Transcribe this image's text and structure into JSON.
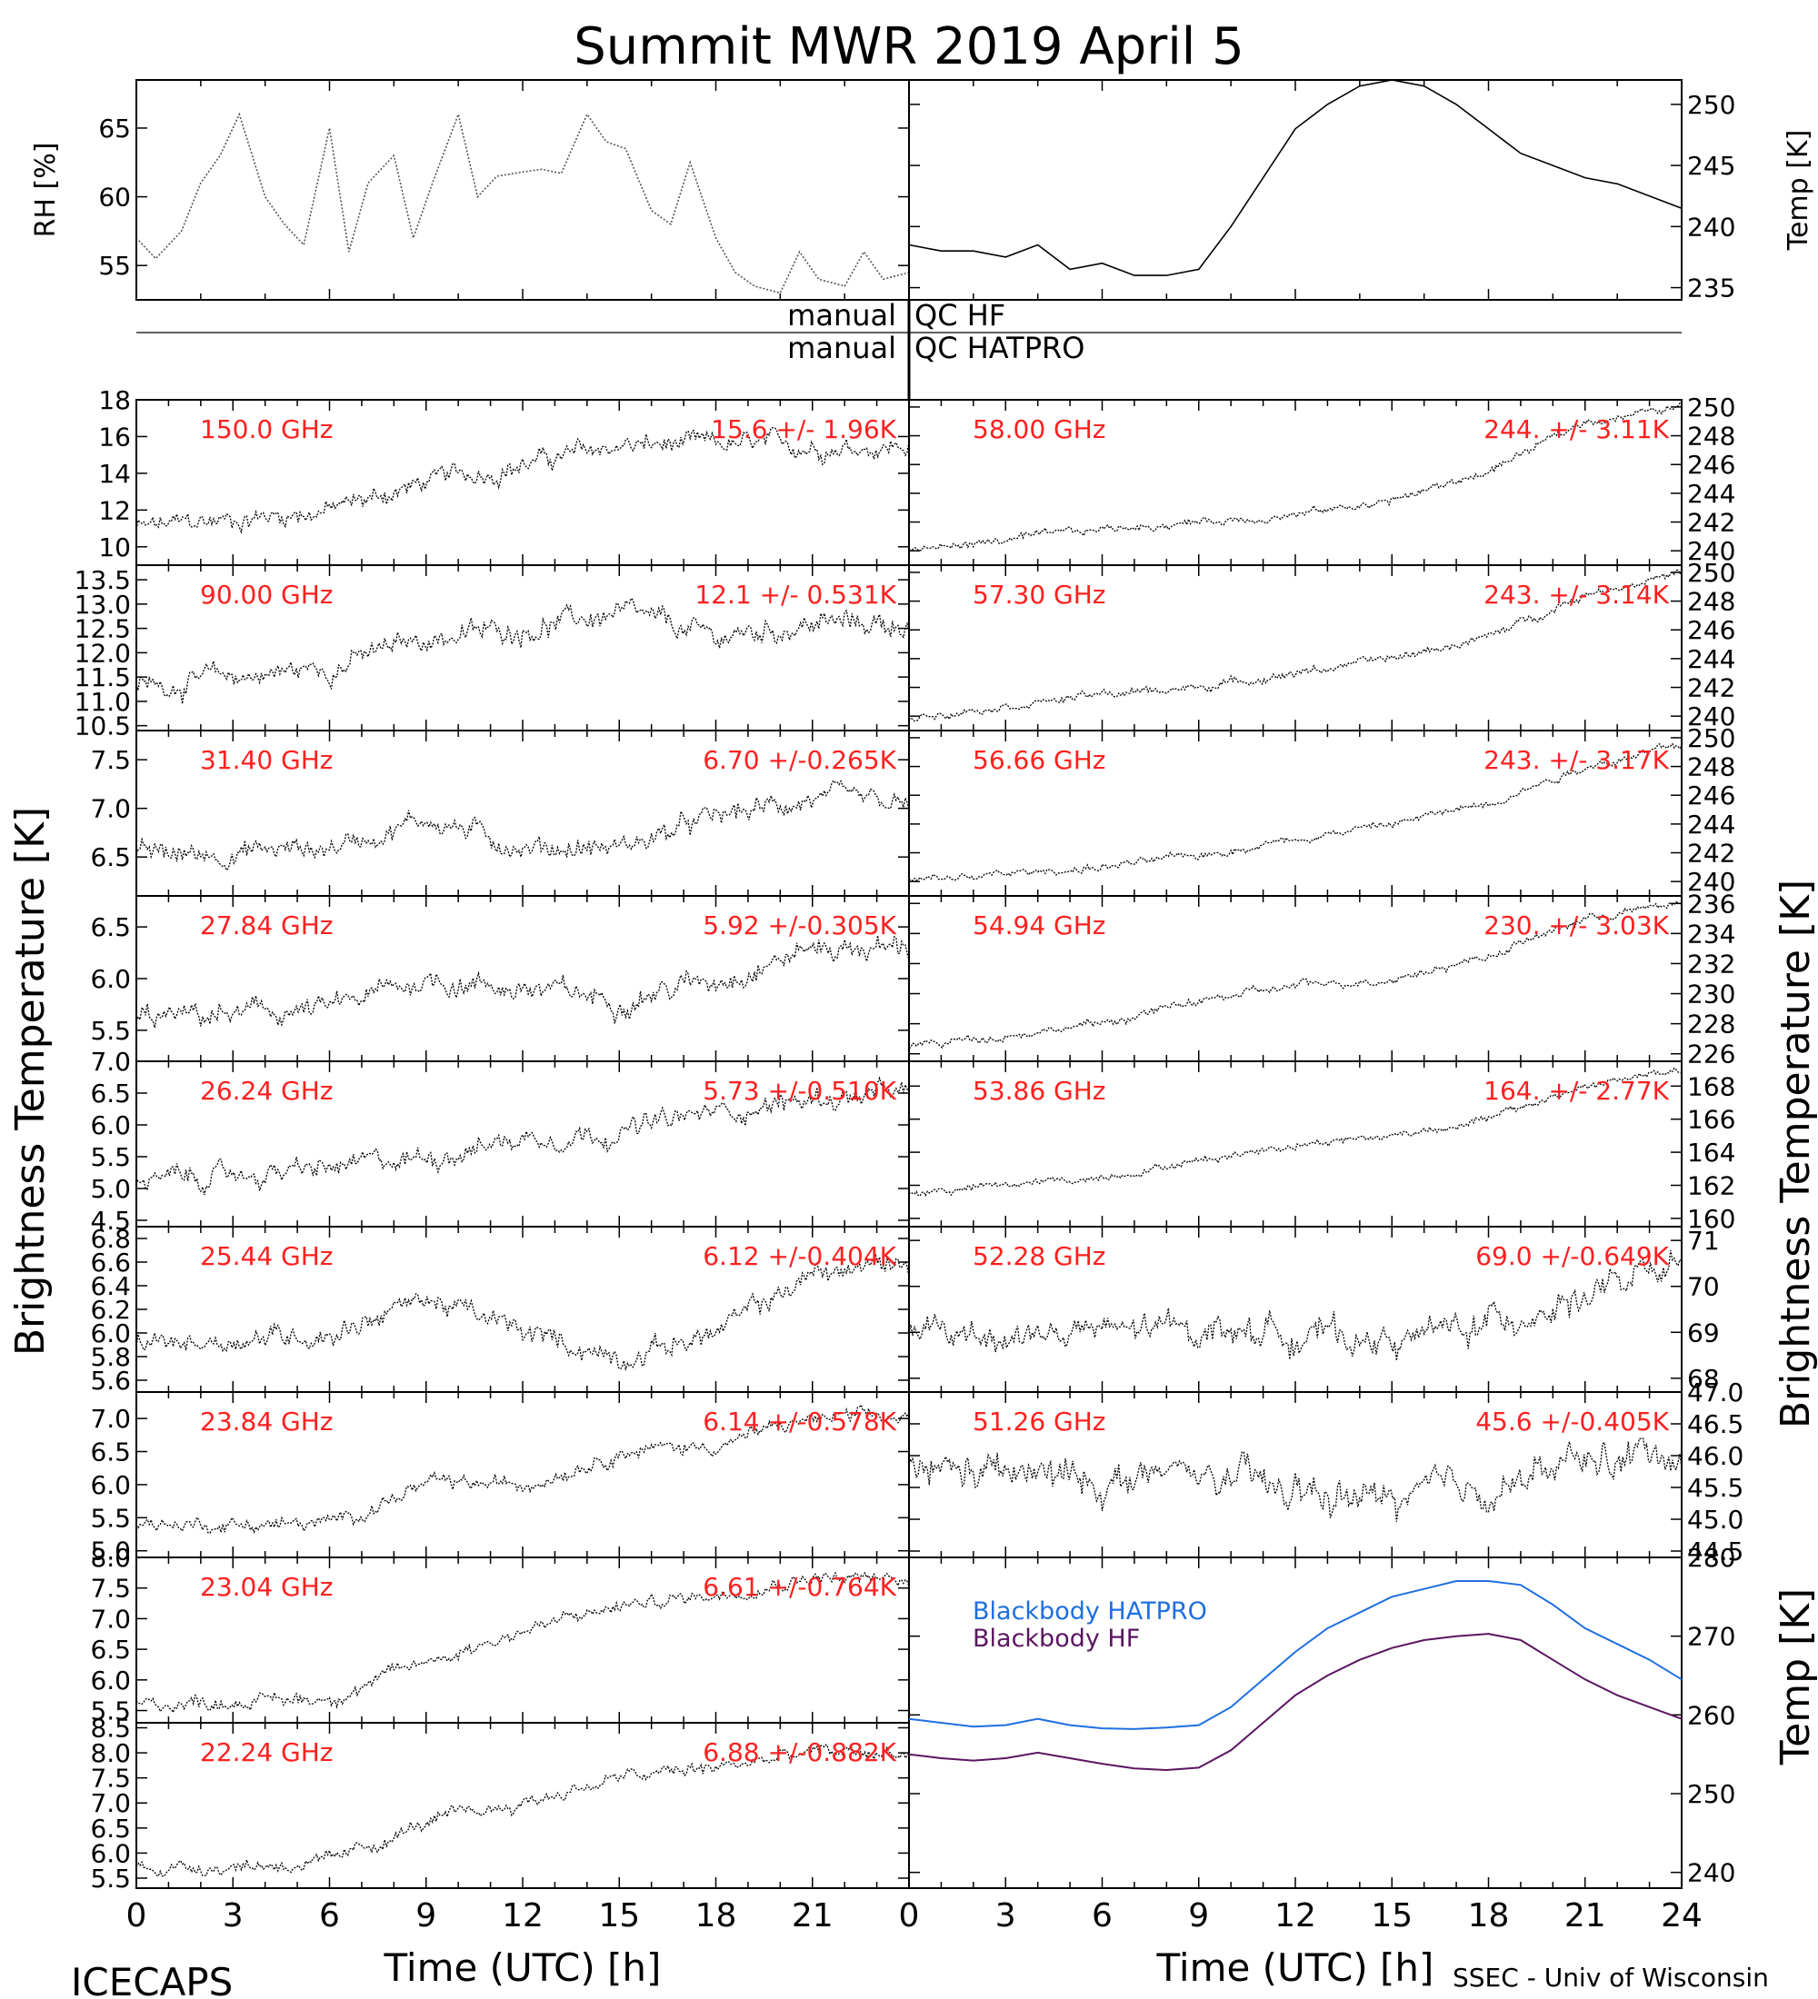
{
  "title": "Summit MWR 2019 April  5",
  "footer": {
    "left": "ICECAPS",
    "right": "SSEC - Univ of Wisconsin",
    "xlabel_left": "Time (UTC) [h]",
    "xlabel_right": "Time (UTC) [h]"
  },
  "side_labels": {
    "left": "Brightness Temperature [K]",
    "right": "Brightness Temperature [K]",
    "right_bottom": "Temp [K]"
  },
  "qc": {
    "row1_left": "manual",
    "row1_right": "QC HF",
    "row2_left": "manual",
    "row2_right": "QC HATPRO"
  },
  "colors": {
    "annotation": "#ff2020",
    "trace": "#000000",
    "hatpro": "#1e6fe0",
    "hf": "#5a1560"
  },
  "chart_data": [
    {
      "id": "rh",
      "type": "line",
      "ylabel": "RH [%]",
      "xlim": [
        0,
        12
      ],
      "ylim": [
        52.5,
        68.5
      ],
      "yticks": [
        55,
        60,
        65
      ],
      "ytick_labels": [
        "55",
        "60",
        "65"
      ],
      "x": [
        0,
        0.3,
        0.7,
        1,
        1.3,
        1.6,
        2,
        2.3,
        2.6,
        3,
        3.3,
        3.6,
        4,
        4.3,
        4.6,
        5,
        5.3,
        5.6,
        6,
        6.3,
        6.6,
        7,
        7.3,
        7.6,
        8,
        8.3,
        8.6,
        9,
        9.3,
        9.6,
        10,
        10.3,
        10.6,
        11,
        11.3,
        11.6,
        12
      ],
      "values": [
        57,
        55.5,
        57.5,
        61,
        63,
        66,
        60,
        58,
        56.5,
        65,
        56,
        61,
        63,
        57,
        61,
        66,
        60,
        61.5,
        61.8,
        62,
        61.7,
        66,
        64,
        63.5,
        59,
        58,
        62.5,
        57,
        54.5,
        53.5,
        53,
        56,
        54,
        53.5,
        56,
        54,
        54.5
      ]
    },
    {
      "id": "temp",
      "type": "line",
      "ylabel": "Temp [K]",
      "xlim": [
        12,
        24
      ],
      "ylim": [
        234,
        252
      ],
      "yticks": [
        235,
        240,
        245,
        250
      ],
      "ytick_labels": [
        "235",
        "240",
        "245",
        "250"
      ],
      "x": [
        12,
        12.5,
        13,
        13.5,
        14,
        14.5,
        15,
        15.5,
        16,
        16.5,
        17,
        17.5,
        18,
        18.5,
        19,
        19.5,
        20,
        20.5,
        21,
        21.5,
        22,
        22.5,
        23,
        23.5,
        24
      ],
      "values": [
        238.5,
        238,
        238,
        237.5,
        238.5,
        236.5,
        237,
        236,
        236,
        236.5,
        240,
        244,
        248,
        250,
        251.5,
        252,
        251.5,
        250,
        248,
        246,
        245,
        244,
        243.5,
        242.5,
        241.5
      ]
    },
    {
      "id": "ch150",
      "type": "line",
      "freq": "150.0 GHz",
      "stats": "15.6 +/- 1.96K",
      "ylim": [
        9,
        18
      ],
      "ytick_labels": [
        "10",
        "12",
        "14",
        "16",
        "18"
      ],
      "yticks": [
        10,
        12,
        14,
        16,
        18
      ],
      "x": [
        0,
        6,
        9,
        12,
        15,
        18,
        21,
        24
      ],
      "values": [
        11,
        12,
        13.5,
        14.5,
        15.5,
        15.5,
        15.5,
        15.5
      ],
      "noise": 0.6
    },
    {
      "id": "ch90",
      "type": "line",
      "freq": "90.00 GHz",
      "stats": "12.1 +/- 0.531K",
      "ylim": [
        10.4,
        13.8
      ],
      "ytick_labels": [
        "10.5",
        "11.0",
        "11.5",
        "12.0",
        "12.5",
        "13.0",
        "13.5"
      ],
      "yticks": [
        10.5,
        11,
        11.5,
        12,
        12.5,
        13,
        13.5
      ],
      "x": [
        0,
        6,
        9,
        12,
        15,
        18,
        21,
        24
      ],
      "values": [
        11.3,
        11.7,
        12.3,
        12.5,
        12.8,
        12.3,
        12.6,
        12.6
      ],
      "noise": 0.25
    },
    {
      "id": "ch3140",
      "type": "line",
      "freq": "31.40 GHz",
      "stats": "6.70 +/-0.265K",
      "ylim": [
        6.1,
        7.8
      ],
      "ytick_labels": [
        "6.5",
        "7.0",
        "7.5"
      ],
      "yticks": [
        6.5,
        7,
        7.5
      ],
      "x": [
        0,
        6,
        9,
        12,
        15,
        18,
        21,
        24
      ],
      "values": [
        6.5,
        6.6,
        6.9,
        6.6,
        6.6,
        6.9,
        7.1,
        7.0
      ],
      "noise": 0.12
    },
    {
      "id": "ch2784",
      "type": "line",
      "freq": "27.84 GHz",
      "stats": "5.92 +/-0.305K",
      "ylim": [
        5.2,
        6.8
      ],
      "ytick_labels": [
        "5.5",
        "6.0",
        "6.5"
      ],
      "yticks": [
        5.5,
        6,
        6.5
      ],
      "x": [
        0,
        6,
        9,
        12,
        15,
        18,
        21,
        24
      ],
      "values": [
        5.6,
        5.7,
        6.0,
        5.9,
        5.8,
        6.0,
        6.3,
        6.3
      ],
      "noise": 0.12
    },
    {
      "id": "ch2624",
      "type": "line",
      "freq": "26.24 GHz",
      "stats": "5.73 +/-0.510K",
      "ylim": [
        4.4,
        7.0
      ],
      "ytick_labels": [
        "4.5",
        "5.0",
        "5.5",
        "6.0",
        "6.5",
        "7.0"
      ],
      "yticks": [
        4.5,
        5,
        5.5,
        6,
        6.5,
        7
      ],
      "x": [
        0,
        6,
        9,
        12,
        15,
        18,
        21,
        24
      ],
      "values": [
        5.1,
        5.3,
        5.5,
        5.8,
        5.9,
        6.2,
        6.4,
        6.5
      ],
      "noise": 0.18
    },
    {
      "id": "ch2544",
      "type": "line",
      "freq": "25.44 GHz",
      "stats": "6.12 +/-0.404K",
      "ylim": [
        5.5,
        6.9
      ],
      "ytick_labels": [
        "5.6",
        "5.8",
        "6.0",
        "6.2",
        "6.4",
        "6.6",
        "6.8"
      ],
      "yticks": [
        5.6,
        5.8,
        6.0,
        6.2,
        6.4,
        6.6,
        6.8
      ],
      "x": [
        0,
        6,
        9,
        12,
        15,
        18,
        21,
        24
      ],
      "values": [
        5.9,
        6.0,
        6.3,
        6.0,
        5.8,
        6.0,
        6.5,
        6.6
      ],
      "noise": 0.1
    },
    {
      "id": "ch2384",
      "type": "line",
      "freq": "23.84 GHz",
      "stats": "6.14 +/-0.578K",
      "ylim": [
        4.9,
        7.4
      ],
      "ytick_labels": [
        "5.0",
        "5.5",
        "6.0",
        "6.5",
        "7.0"
      ],
      "yticks": [
        5,
        5.5,
        6,
        6.5,
        7
      ],
      "x": [
        0,
        6,
        9,
        12,
        15,
        18,
        21,
        24
      ],
      "values": [
        5.4,
        5.4,
        6.0,
        6.0,
        6.5,
        6.6,
        7.0,
        7.0
      ],
      "noise": 0.12
    },
    {
      "id": "ch2304",
      "type": "line",
      "freq": "23.04 GHz",
      "stats": "6.61 +/-0.764K",
      "ylim": [
        5.3,
        8.0
      ],
      "ytick_labels": [
        "5.5",
        "6.0",
        "6.5",
        "7.0",
        "7.5",
        "8.0"
      ],
      "yticks": [
        5.5,
        6,
        6.5,
        7,
        7.5,
        8
      ],
      "x": [
        0,
        6,
        9,
        12,
        15,
        18,
        21,
        24
      ],
      "values": [
        5.6,
        5.7,
        6.3,
        6.8,
        7.2,
        7.4,
        7.7,
        7.6
      ],
      "noise": 0.12
    },
    {
      "id": "ch2224",
      "type": "line",
      "freq": "22.24 GHz",
      "stats": "6.88 +/-0.882K",
      "ylim": [
        5.3,
        8.6
      ],
      "ytick_labels": [
        "5.5",
        "6.0",
        "6.5",
        "7.0",
        "7.5",
        "8.0",
        "8.5"
      ],
      "yticks": [
        5.5,
        6,
        6.5,
        7,
        7.5,
        8,
        8.5
      ],
      "x": [
        0,
        6,
        9,
        12,
        15,
        18,
        21,
        24
      ],
      "values": [
        5.7,
        5.8,
        6.6,
        7.0,
        7.5,
        7.7,
        8.0,
        8.0
      ],
      "noise": 0.15
    },
    {
      "id": "ch5800",
      "type": "line",
      "freq": "58.00 GHz",
      "stats": "244. +/- 3.11K",
      "ylim": [
        239,
        250.5
      ],
      "ytick_labels": [
        "240",
        "242",
        "244",
        "246",
        "248",
        "250"
      ],
      "yticks": [
        240,
        242,
        244,
        246,
        248,
        250
      ],
      "x": [
        0,
        6,
        9,
        12,
        15,
        18,
        21,
        24
      ],
      "values": [
        240,
        241.5,
        242,
        242.5,
        243.5,
        245.5,
        249,
        250
      ],
      "noise": 0.3
    },
    {
      "id": "ch5730",
      "type": "line",
      "freq": "57.30 GHz",
      "stats": "243. +/- 3.14K",
      "ylim": [
        239,
        250.5
      ],
      "ytick_labels": [
        "240",
        "242",
        "244",
        "246",
        "248",
        "250"
      ],
      "yticks": [
        240,
        242,
        244,
        246,
        248,
        250
      ],
      "x": [
        0,
        6,
        9,
        12,
        15,
        18,
        21,
        24
      ],
      "values": [
        240,
        241.5,
        242,
        243,
        244,
        245.5,
        248.5,
        250
      ],
      "noise": 0.3
    },
    {
      "id": "ch5666",
      "type": "line",
      "freq": "56.66 GHz",
      "stats": "243. +/- 3.17K",
      "ylim": [
        239,
        250.5
      ],
      "ytick_labels": [
        "240",
        "242",
        "244",
        "246",
        "248",
        "250"
      ],
      "yticks": [
        240,
        242,
        244,
        246,
        248,
        250
      ],
      "x": [
        0,
        6,
        9,
        12,
        15,
        18,
        21,
        24
      ],
      "values": [
        240,
        241,
        241.8,
        243,
        244,
        245.5,
        248,
        249.5
      ],
      "noise": 0.3
    },
    {
      "id": "ch5494",
      "type": "line",
      "freq": "54.94 GHz",
      "stats": "230. +/- 3.03K",
      "ylim": [
        225.5,
        236.5
      ],
      "ytick_labels": [
        "226",
        "228",
        "230",
        "232",
        "234",
        "236"
      ],
      "yticks": [
        226,
        228,
        230,
        232,
        234,
        236
      ],
      "x": [
        0,
        6,
        9,
        12,
        15,
        18,
        21,
        24
      ],
      "values": [
        226.5,
        228,
        229.5,
        230.5,
        231,
        232.5,
        235,
        236
      ],
      "noise": 0.3
    },
    {
      "id": "ch5386",
      "type": "line",
      "freq": "53.86 GHz",
      "stats": "164. +/- 2.77K",
      "ylim": [
        159.5,
        169.5
      ],
      "ytick_labels": [
        "160",
        "162",
        "164",
        "166",
        "168"
      ],
      "yticks": [
        160,
        162,
        164,
        166,
        168
      ],
      "x": [
        0,
        6,
        9,
        12,
        15,
        18,
        21,
        24
      ],
      "values": [
        161.5,
        162.5,
        163.5,
        164.5,
        165,
        166,
        168,
        169
      ],
      "noise": 0.25
    },
    {
      "id": "ch5228",
      "type": "line",
      "freq": "52.28 GHz",
      "stats": "69.0 +/-0.649K",
      "ylim": [
        67.7,
        71.3
      ],
      "ytick_labels": [
        "68",
        "69",
        "70",
        "71"
      ],
      "yticks": [
        68,
        69,
        70,
        71
      ],
      "x": [
        0,
        6,
        9,
        12,
        15,
        18,
        21,
        24
      ],
      "values": [
        68.9,
        69.0,
        69.1,
        69.0,
        68.8,
        69.2,
        69.8,
        70.4
      ],
      "noise": 0.35
    },
    {
      "id": "ch5126",
      "type": "line",
      "freq": "51.26 GHz",
      "stats": "45.6 +/-0.405K",
      "ylim": [
        44.4,
        47.0
      ],
      "ytick_labels": [
        "44.5",
        "45.0",
        "45.5",
        "46.0",
        "46.5",
        "47.0"
      ],
      "yticks": [
        44.5,
        45,
        45.5,
        46,
        46.5,
        47
      ],
      "x": [
        0,
        6,
        9,
        12,
        15,
        18,
        21,
        24
      ],
      "values": [
        45.8,
        45.6,
        45.7,
        45.4,
        45.3,
        45.5,
        45.9,
        46.1
      ],
      "noise": 0.3
    },
    {
      "id": "blackbody",
      "type": "line",
      "ylabel": "Temp [K]",
      "xlim": [
        0,
        24
      ],
      "ylim": [
        238,
        280
      ],
      "yticks": [
        240,
        250,
        260,
        270,
        280
      ],
      "ytick_labels": [
        "240",
        "250",
        "260",
        "270",
        "280"
      ],
      "x": [
        0,
        1,
        2,
        3,
        4,
        5,
        6,
        7,
        8,
        9,
        10,
        11,
        12,
        13,
        14,
        15,
        16,
        17,
        18,
        19,
        20,
        21,
        22,
        23,
        24
      ],
      "series": [
        {
          "name": "Blackbody HATPRO",
          "color": "#1e6fe0",
          "values": [
            259.5,
            259,
            258.5,
            258.7,
            259.5,
            258.7,
            258.3,
            258.2,
            258.4,
            258.7,
            261,
            264.5,
            268,
            271,
            273,
            275,
            276,
            277,
            277,
            276.5,
            274,
            271,
            269,
            267,
            264.5
          ]
        },
        {
          "name": "Blackbody HF",
          "color": "#5a1560",
          "values": [
            255,
            254.5,
            254.2,
            254.5,
            255.2,
            254.5,
            253.8,
            253.2,
            253,
            253.3,
            255.5,
            259,
            262.5,
            265,
            267,
            268.5,
            269.5,
            270,
            270.3,
            269.5,
            267,
            264.5,
            262.5,
            261,
            259.5
          ]
        }
      ]
    }
  ],
  "xticks": [
    "0",
    "3",
    "6",
    "9",
    "12",
    "15",
    "18",
    "21",
    "24"
  ],
  "xticks_left": [
    "0",
    "3",
    "6",
    "9",
    "12",
    "15",
    "18",
    "21"
  ]
}
